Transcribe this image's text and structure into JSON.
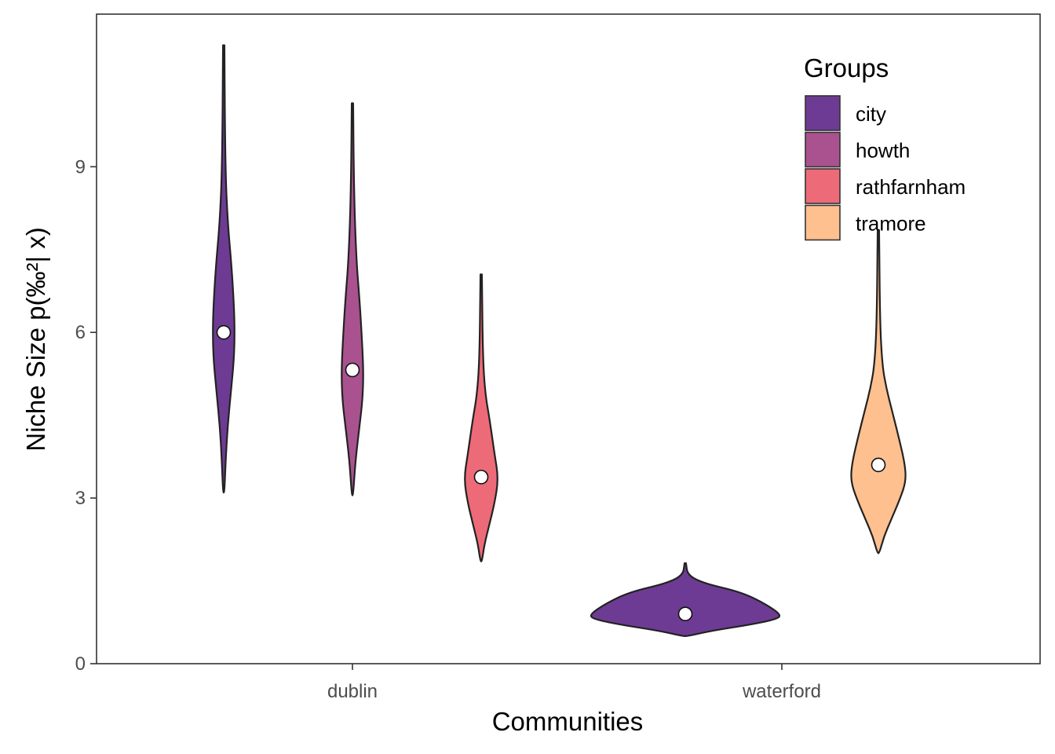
{
  "chart_data": {
    "type": "violin",
    "xlabel": "Communities",
    "ylabel": "Niche Size p(‰²| x)",
    "ylim": [
      0,
      11.8
    ],
    "y_ticks": [
      0,
      3,
      6,
      9
    ],
    "x_categories": [
      "dublin",
      "waterford"
    ],
    "legend": {
      "title": "Groups",
      "placement": "top-right",
      "entries": [
        {
          "name": "city",
          "color": "#6E3B94"
        },
        {
          "name": "howth",
          "color": "#A9528F"
        },
        {
          "name": "rathfarnham",
          "color": "#ED6B78"
        },
        {
          "name": "tramore",
          "color": "#FEC08F"
        }
      ]
    },
    "series": [
      {
        "community": "dublin",
        "group": "city",
        "median": 6.0,
        "min": 3.1,
        "max": 11.2
      },
      {
        "community": "dublin",
        "group": "howth",
        "median": 5.32,
        "min": 3.05,
        "max": 10.15
      },
      {
        "community": "dublin",
        "group": "rathfarnham",
        "median": 3.38,
        "min": 1.85,
        "max": 7.05
      },
      {
        "community": "waterford",
        "group": "city",
        "median": 0.9,
        "min": 0.5,
        "max": 1.82
      },
      {
        "community": "waterford",
        "group": "tramore",
        "median": 3.6,
        "min": 2.0,
        "max": 7.85
      }
    ],
    "grid": false
  }
}
